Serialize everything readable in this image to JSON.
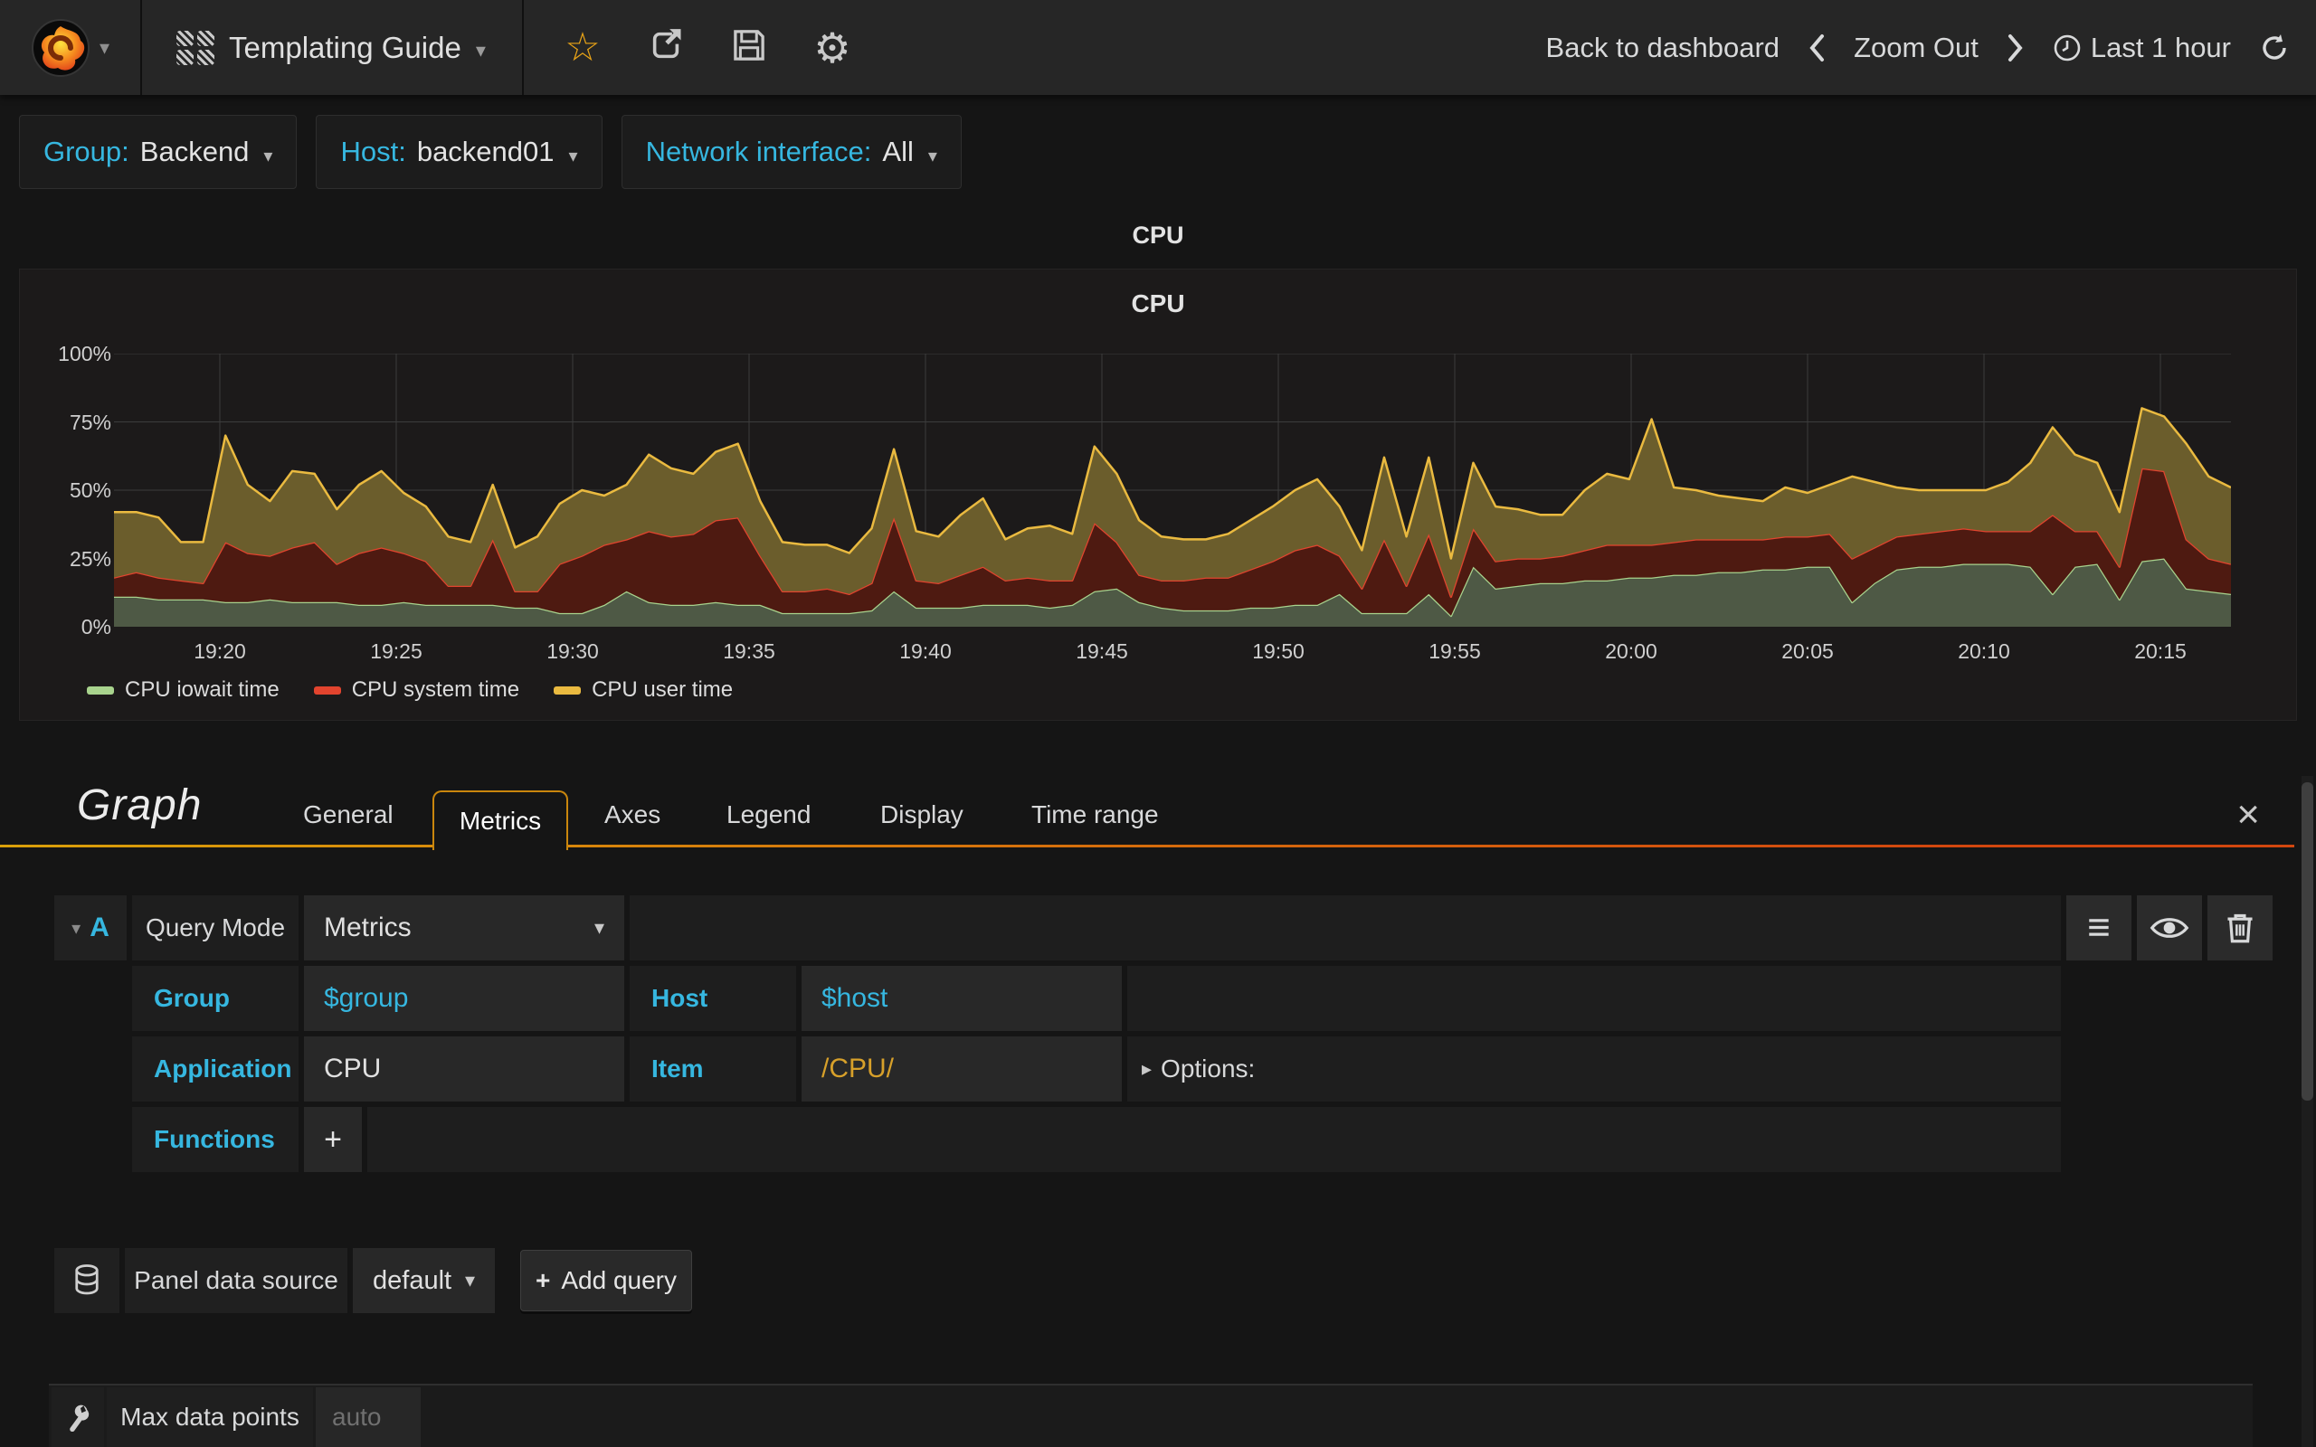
{
  "navbar": {
    "title": "Templating Guide",
    "back_to_dashboard": "Back to dashboard",
    "zoom_out": "Zoom Out",
    "time_range": "Last 1 hour"
  },
  "variables": [
    {
      "label": "Group:",
      "value": "Backend"
    },
    {
      "label": "Host:",
      "value": "backend01"
    },
    {
      "label": "Network interface:",
      "value": "All"
    }
  ],
  "row_title": "CPU",
  "panel_title": "CPU",
  "chart_data": {
    "type": "area",
    "stacked": true,
    "title": "CPU",
    "ylim": [
      0,
      100
    ],
    "grid": true,
    "legend_position": "bottom",
    "y_ticks": [
      "0%",
      "25%",
      "50%",
      "75%",
      "100%"
    ],
    "x_range": [
      "19:17",
      "20:17"
    ],
    "x_ticks": [
      {
        "label": "19:20",
        "f": 0.05
      },
      {
        "label": "19:25",
        "f": 0.13333
      },
      {
        "label": "19:30",
        "f": 0.21667
      },
      {
        "label": "19:35",
        "f": 0.3
      },
      {
        "label": "19:40",
        "f": 0.38333
      },
      {
        "label": "19:45",
        "f": 0.46667
      },
      {
        "label": "19:50",
        "f": 0.55
      },
      {
        "label": "19:55",
        "f": 0.63333
      },
      {
        "label": "20:00",
        "f": 0.71667
      },
      {
        "label": "20:05",
        "f": 0.8
      },
      {
        "label": "20:10",
        "f": 0.88333
      },
      {
        "label": "20:15",
        "f": 0.96667
      }
    ],
    "series": [
      {
        "name": "CPU iowait time",
        "line": "#A8D38D",
        "fill": "#4E5945",
        "values": [
          11,
          11,
          10,
          10,
          10,
          9,
          9,
          10,
          9,
          9,
          9,
          8,
          8,
          9,
          8,
          8,
          8,
          8,
          7,
          7,
          5,
          5,
          8,
          13,
          9,
          8,
          8,
          9,
          8,
          8,
          5,
          5,
          5,
          5,
          6,
          13,
          7,
          7,
          7,
          8,
          8,
          8,
          7,
          8,
          13,
          14,
          9,
          7,
          6,
          6,
          6,
          7,
          7,
          8,
          8,
          12,
          5,
          5,
          5,
          12,
          4,
          22,
          14,
          15,
          16,
          16,
          17,
          17,
          18,
          18,
          19,
          19,
          20,
          20,
          21,
          21,
          22,
          22,
          9,
          16,
          21,
          22,
          22,
          23,
          23,
          23,
          22,
          12,
          22,
          23,
          10,
          24,
          25,
          14,
          13,
          12
        ]
      },
      {
        "name": "CPU system time",
        "line": "#E2442E",
        "fill": "#4E1A11",
        "values": [
          7,
          9,
          8,
          7,
          6,
          22,
          18,
          16,
          20,
          22,
          14,
          19,
          21,
          18,
          16,
          7,
          7,
          24,
          6,
          6,
          18,
          21,
          22,
          19,
          26,
          25,
          26,
          30,
          32,
          18,
          8,
          8,
          9,
          7,
          10,
          27,
          10,
          9,
          12,
          14,
          9,
          10,
          10,
          9,
          25,
          17,
          10,
          10,
          11,
          12,
          12,
          14,
          17,
          20,
          22,
          14,
          9,
          27,
          10,
          22,
          7,
          14,
          10,
          10,
          9,
          10,
          11,
          13,
          12,
          12,
          12,
          13,
          12,
          12,
          11,
          12,
          11,
          12,
          16,
          13,
          12,
          12,
          13,
          13,
          12,
          12,
          13,
          29,
          13,
          12,
          12,
          34,
          32,
          18,
          12,
          11
        ]
      },
      {
        "name": "CPU user time",
        "line": "#EABA40",
        "fill": "#6B5D2C",
        "values": [
          24,
          22,
          22,
          14,
          15,
          39,
          25,
          20,
          28,
          25,
          20,
          25,
          28,
          22,
          20,
          18,
          16,
          20,
          16,
          20,
          22,
          24,
          18,
          20,
          28,
          25,
          22,
          25,
          27,
          20,
          18,
          17,
          16,
          15,
          20,
          25,
          18,
          17,
          22,
          25,
          15,
          18,
          20,
          17,
          28,
          25,
          20,
          16,
          15,
          14,
          16,
          18,
          20,
          22,
          24,
          18,
          14,
          30,
          18,
          28,
          14,
          24,
          20,
          18,
          16,
          15,
          22,
          26,
          24,
          46,
          20,
          18,
          16,
          15,
          14,
          18,
          16,
          18,
          30,
          24,
          18,
          16,
          15,
          14,
          15,
          18,
          25,
          32,
          28,
          25,
          20,
          22,
          20,
          35,
          30,
          28
        ]
      }
    ]
  },
  "editor": {
    "panel_type": "Graph",
    "tabs": [
      "General",
      "Metrics",
      "Axes",
      "Legend",
      "Display",
      "Time range"
    ],
    "active_tab": "Metrics",
    "close_label": "×",
    "query": {
      "letter": "A",
      "query_mode_label": "Query Mode",
      "query_mode_value": "Metrics",
      "group_label": "Group",
      "group_value": "$group",
      "host_label": "Host",
      "host_value": "$host",
      "application_label": "Application",
      "application_value": "CPU",
      "item_label": "Item",
      "item_value": "/CPU/",
      "options_label": "Options:",
      "functions_label": "Functions",
      "add_function": "+"
    },
    "datasource": {
      "label": "Panel data source",
      "value": "default",
      "plus": "+",
      "add_query": "Add query"
    },
    "max_data_points": {
      "label": "Max data points",
      "placeholder": "auto"
    }
  },
  "colors": {
    "accent_blue": "#36B7E0",
    "gold_value": "#D7A02A",
    "star_orange": "#E8A317",
    "tab_gradient_start": "#D9A00A",
    "tab_gradient_end": "#D2470E"
  }
}
